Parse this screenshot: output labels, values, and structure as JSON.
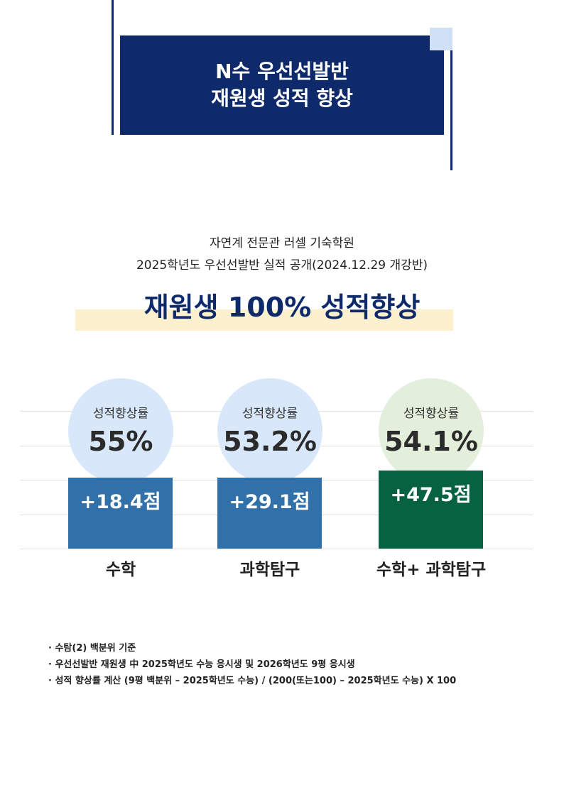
{
  "title": {
    "line1": "N수 우선선발반",
    "line2": "재원생 성적 향상"
  },
  "intro": {
    "line1": "자연계 전문관 러셀 기숙학원",
    "line2": "2025학년도 우선선발반 실적 공개(2024.12.29 개강반)"
  },
  "headline": "재원생 100% 성적향상",
  "colors": {
    "navy": "#0e2a6b",
    "blue_bar": "#3170a8",
    "green_bar": "#066241",
    "circle_blue": "#d8e7f9",
    "circle_green": "#e3efda",
    "highlight": "#fdf0cf"
  },
  "chart_data": {
    "type": "bar",
    "categories": [
      "수학",
      "과학탐구",
      "수학+ 과학탐구"
    ],
    "rate_label": "성적향상률",
    "rates": [
      "55%",
      "53.2%",
      "54.1%"
    ],
    "values": [
      18.4,
      29.1,
      47.5
    ],
    "value_labels": [
      "+18.4점",
      "+29.1점",
      "+47.5점"
    ],
    "bar_colors": [
      "#3170a8",
      "#3170a8",
      "#066241"
    ],
    "circle_colors": [
      "#d8e7f9",
      "#d8e7f9",
      "#e3efda"
    ]
  },
  "notes": [
    "· 수탐(2) 백분위 기준",
    "· 우선선발반 재원생 中 2025학년도 수능 응시생 및 2026학년도 9평 응시생",
    "· 성적 향상률 계산 (9평 백분위 – 2025학년도 수능) / (200(또는100) – 2025학년도 수능) X 100"
  ]
}
